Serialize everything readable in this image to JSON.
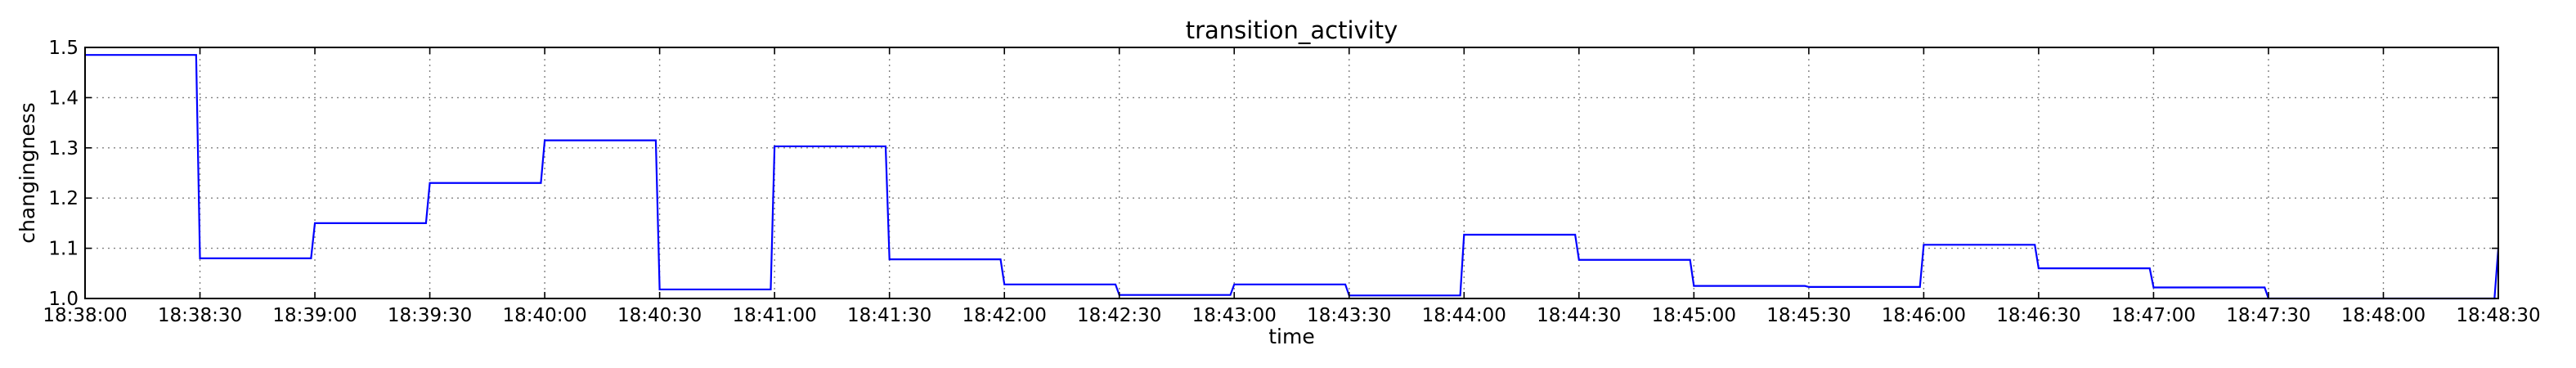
{
  "chart_data": {
    "type": "line",
    "title": "transition_activity",
    "xlabel": "time",
    "ylabel": "changingness",
    "grid": true,
    "legend": "none",
    "line_color": "#0000ff",
    "xlim": [
      "18:38:00",
      "18:48:30"
    ],
    "ylim": [
      1.0,
      1.5
    ],
    "xticks": [
      "18:38:00",
      "18:38:30",
      "18:39:00",
      "18:39:30",
      "18:40:00",
      "18:40:30",
      "18:41:00",
      "18:41:30",
      "18:42:00",
      "18:42:30",
      "18:43:00",
      "18:43:30",
      "18:44:00",
      "18:44:30",
      "18:45:00",
      "18:45:30",
      "18:46:00",
      "18:46:30",
      "18:47:00",
      "18:47:30",
      "18:48:00",
      "18:48:30"
    ],
    "yticks": [
      "1.0",
      "1.1",
      "1.2",
      "1.3",
      "1.4",
      "1.5"
    ],
    "series": [
      {
        "x": [
          "18:38:00",
          "18:38:29",
          "18:38:30",
          "18:38:59",
          "18:39:00",
          "18:39:29",
          "18:39:30",
          "18:39:59",
          "18:40:00",
          "18:40:29",
          "18:40:30",
          "18:40:59",
          "18:41:00",
          "18:41:29",
          "18:41:30",
          "18:41:59",
          "18:42:00",
          "18:42:29",
          "18:42:30",
          "18:42:59",
          "18:43:00",
          "18:43:29",
          "18:43:30",
          "18:43:59",
          "18:44:00",
          "18:44:29",
          "18:44:30",
          "18:44:59",
          "18:45:00",
          "18:45:29",
          "18:45:30",
          "18:45:59",
          "18:46:00",
          "18:46:29",
          "18:46:30",
          "18:46:59",
          "18:47:00",
          "18:47:29",
          "18:47:30",
          "18:48:29",
          "18:48:30"
        ],
        "y": [
          1.485,
          1.485,
          1.08,
          1.08,
          1.15,
          1.15,
          1.23,
          1.23,
          1.315,
          1.315,
          1.018,
          1.018,
          1.303,
          1.303,
          1.078,
          1.078,
          1.028,
          1.028,
          1.007,
          1.007,
          1.028,
          1.028,
          1.006,
          1.006,
          1.127,
          1.127,
          1.077,
          1.077,
          1.025,
          1.025,
          1.023,
          1.023,
          1.107,
          1.107,
          1.06,
          1.06,
          1.022,
          1.022,
          1.0,
          1.0,
          1.1
        ]
      }
    ]
  }
}
